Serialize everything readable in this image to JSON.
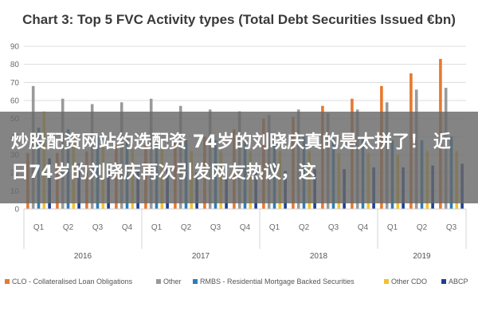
{
  "overlay": {
    "text": "炒股配资网站约选配资 74岁的刘晓庆真的是太拼了！ 近日74岁的刘晓庆再次引发网友热议，这"
  },
  "chart_data": {
    "type": "bar",
    "title": "Chart 3: Top 5 FVC Activity types (Total Debt Securities Issued €bn)",
    "xlabel": "",
    "ylabel": "",
    "ylim": [
      0,
      90
    ],
    "yticks": [
      0,
      10,
      20,
      30,
      40,
      50,
      60,
      70,
      80,
      90
    ],
    "grid": true,
    "legend_position": "bottom",
    "categories": [
      "Q1",
      "Q2",
      "Q3",
      "Q4",
      "Q1",
      "Q2",
      "Q3",
      "Q4",
      "Q1",
      "Q2",
      "Q3",
      "Q4",
      "Q1",
      "Q2",
      "Q3"
    ],
    "groups": [
      {
        "label": "2016",
        "count": 4
      },
      {
        "label": "2017",
        "count": 4
      },
      {
        "label": "2018",
        "count": 4
      },
      {
        "label": "2019",
        "count": 3
      }
    ],
    "series": [
      {
        "name": "CLO - Collateralised Loan Obligations",
        "color": "#e8782f",
        "values": [
          31,
          31,
          32,
          35,
          36,
          37,
          40,
          44,
          50,
          51,
          57,
          61,
          68,
          75,
          83
        ]
      },
      {
        "name": "Other",
        "color": "#9a9a9a",
        "values": [
          68,
          61,
          58,
          59,
          61,
          57,
          55,
          54,
          52,
          55,
          53,
          55,
          59,
          66,
          67
        ]
      },
      {
        "name": "RMBS - Residential Mortgage Backed Securities",
        "color": "#2b7fb5",
        "values": [
          45,
          44,
          40,
          39,
          41,
          38,
          38,
          38,
          40,
          40,
          39,
          39,
          38,
          38,
          40
        ]
      },
      {
        "name": "Other CDO",
        "color": "#f2c12e",
        "values": [
          54,
          40,
          35,
          33,
          33,
          32,
          32,
          32,
          32,
          32,
          31,
          31,
          30,
          32,
          32
        ]
      },
      {
        "name": "ABCP",
        "color": "#1f3f8f",
        "values": [
          28,
          25,
          22,
          21,
          22,
          20,
          20,
          20,
          21,
          22,
          22,
          23,
          23,
          24,
          25
        ]
      }
    ]
  }
}
